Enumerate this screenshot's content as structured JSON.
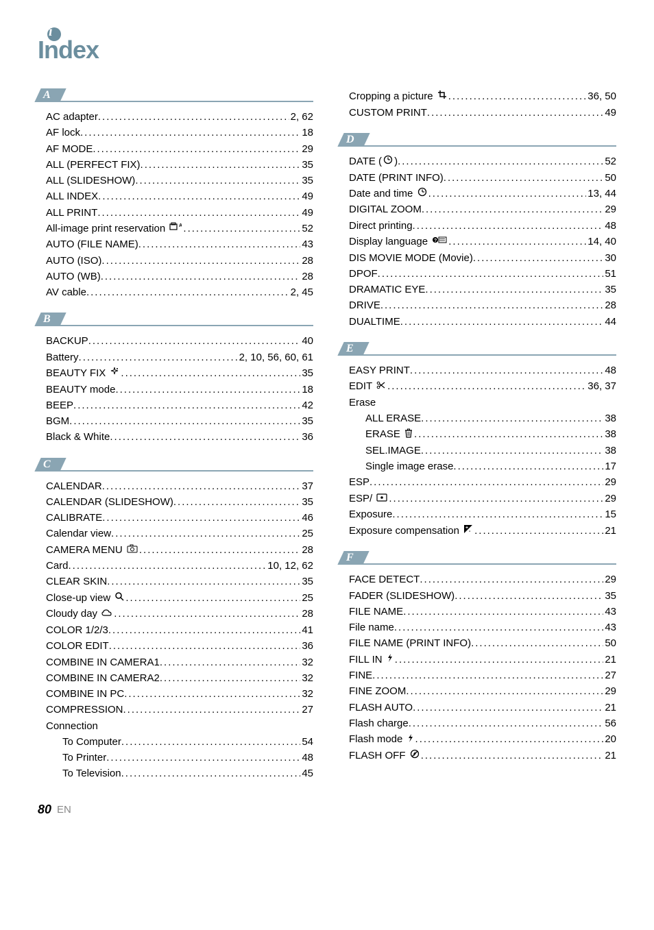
{
  "header": {
    "title": "Index"
  },
  "footer": {
    "page": "80",
    "lang": "EN"
  },
  "colors": {
    "accent": "#8aa5b3",
    "header_accent": "#6b8e9e",
    "text": "#000000",
    "muted": "#888888",
    "background": "#ffffff"
  },
  "left": {
    "sections": [
      {
        "letter": "A",
        "entries": [
          {
            "label": "AC adapter",
            "page": "2, 62"
          },
          {
            "label": "AF lock",
            "page": "18"
          },
          {
            "label": "AF MODE",
            "page": "29"
          },
          {
            "label": "ALL (PERFECT FIX)",
            "page": "35"
          },
          {
            "label": "ALL (SLIDESHOW)",
            "page": "35"
          },
          {
            "label": "ALL INDEX",
            "page": "49"
          },
          {
            "label": "ALL PRINT",
            "page": "49"
          },
          {
            "label": "All-image print reservation",
            "icon": "print-all",
            "page": "52"
          },
          {
            "label": "AUTO (FILE NAME)",
            "page": "43"
          },
          {
            "label": "AUTO (ISO)",
            "page": "28"
          },
          {
            "label": "AUTO (WB)",
            "page": "28"
          },
          {
            "label": "AV cable",
            "page": "2, 45"
          }
        ]
      },
      {
        "letter": "B",
        "entries": [
          {
            "label": "BACKUP",
            "page": "40"
          },
          {
            "label": "Battery",
            "page": "2, 10, 56, 60, 61"
          },
          {
            "label": "BEAUTY FIX",
            "icon": "sparkle",
            "page": "35"
          },
          {
            "label": "BEAUTY mode",
            "page": "18"
          },
          {
            "label": "BEEP",
            "page": "42"
          },
          {
            "label": "BGM",
            "page": "35"
          },
          {
            "label": "Black & White",
            "page": "36"
          }
        ]
      },
      {
        "letter": "C",
        "entries": [
          {
            "label": "CALENDAR",
            "page": "37"
          },
          {
            "label": "CALENDAR (SLIDESHOW)",
            "page": "35"
          },
          {
            "label": "CALIBRATE",
            "page": "46"
          },
          {
            "label": "Calendar view",
            "page": "25"
          },
          {
            "label": "CAMERA MENU",
            "icon": "camera-menu",
            "page": "28"
          },
          {
            "label": "Card",
            "page": "10, 12, 62"
          },
          {
            "label": "CLEAR SKIN",
            "page": "35"
          },
          {
            "label": "Close-up view",
            "icon": "magnify",
            "page": "25"
          },
          {
            "label": "Cloudy day",
            "icon": "cloud",
            "page": "28"
          },
          {
            "label": "COLOR 1/2/3",
            "page": "41"
          },
          {
            "label": "COLOR EDIT",
            "page": "36"
          },
          {
            "label": "COMBINE IN CAMERA1",
            "page": "32"
          },
          {
            "label": "COMBINE IN CAMERA2",
            "page": "32"
          },
          {
            "label": "COMBINE IN PC",
            "page": "32"
          },
          {
            "label": "COMPRESSION",
            "page": "27"
          },
          {
            "label": "Connection",
            "page": null
          },
          {
            "label": "To Computer",
            "indent": true,
            "page": "54"
          },
          {
            "label": "To Printer",
            "indent": true,
            "page": "48"
          },
          {
            "label": "To Television",
            "indent": true,
            "page": "45"
          }
        ]
      }
    ]
  },
  "right": {
    "pre_entries": [
      {
        "label": "Cropping a picture",
        "icon": "crop",
        "page": "36, 50"
      },
      {
        "label": "CUSTOM PRINT",
        "page": "49"
      }
    ],
    "sections": [
      {
        "letter": "D",
        "entries": [
          {
            "label_prefix": "DATE (",
            "icon": "clock",
            "label_suffix": ")",
            "page": "52"
          },
          {
            "label": "DATE (PRINT INFO)",
            "page": "50"
          },
          {
            "label": "Date and time",
            "icon": "clock",
            "page": "13, 44"
          },
          {
            "label": "DIGITAL ZOOM",
            "page": "29"
          },
          {
            "label": "Direct printing",
            "page": "48"
          },
          {
            "label": "Display language",
            "icon": "lang",
            "page": "14, 40"
          },
          {
            "label": "DIS MOVIE MODE (Movie)",
            "page": "30"
          },
          {
            "label": "DPOF",
            "page": "51"
          },
          {
            "label": "DRAMATIC EYE",
            "page": "35"
          },
          {
            "label": "DRIVE",
            "page": "28"
          },
          {
            "label": "DUALTIME",
            "page": "44"
          }
        ]
      },
      {
        "letter": "E",
        "entries": [
          {
            "label": "EASY PRINT",
            "page": "48"
          },
          {
            "label": "EDIT",
            "icon": "scissors",
            "page": "36, 37"
          },
          {
            "label": "Erase",
            "page": null
          },
          {
            "label": "ALL ERASE",
            "indent": true,
            "page": "38"
          },
          {
            "label": "ERASE",
            "icon": "trash",
            "indent": true,
            "page": "38"
          },
          {
            "label": "SEL.IMAGE",
            "indent": true,
            "page": "38"
          },
          {
            "label": "Single image erase",
            "indent": true,
            "page": "17"
          },
          {
            "label": "ESP",
            "page": "29"
          },
          {
            "label": "ESP/",
            "icon": "spot",
            "page": "29"
          },
          {
            "label": "Exposure",
            "page": "15"
          },
          {
            "label": "Exposure compensation",
            "icon": "expcomp",
            "page": "21"
          }
        ]
      },
      {
        "letter": "F",
        "entries": [
          {
            "label": "FACE DETECT",
            "page": "29"
          },
          {
            "label": "FADER (SLIDESHOW)",
            "page": "35"
          },
          {
            "label": "FILE NAME",
            "page": "43"
          },
          {
            "label": "File name",
            "page": "43"
          },
          {
            "label": "FILE NAME (PRINT INFO)",
            "page": "50"
          },
          {
            "label": "FILL IN",
            "icon": "flash",
            "page": "21"
          },
          {
            "label": "FINE",
            "page": "27"
          },
          {
            "label": "FINE ZOOM",
            "page": "29"
          },
          {
            "label": "FLASH AUTO",
            "page": "21"
          },
          {
            "label": "Flash charge",
            "page": "56"
          },
          {
            "label": "Flash mode",
            "icon": "flash",
            "page": "20"
          },
          {
            "label": "FLASH OFF",
            "icon": "noflash",
            "page": "21"
          }
        ]
      }
    ]
  }
}
